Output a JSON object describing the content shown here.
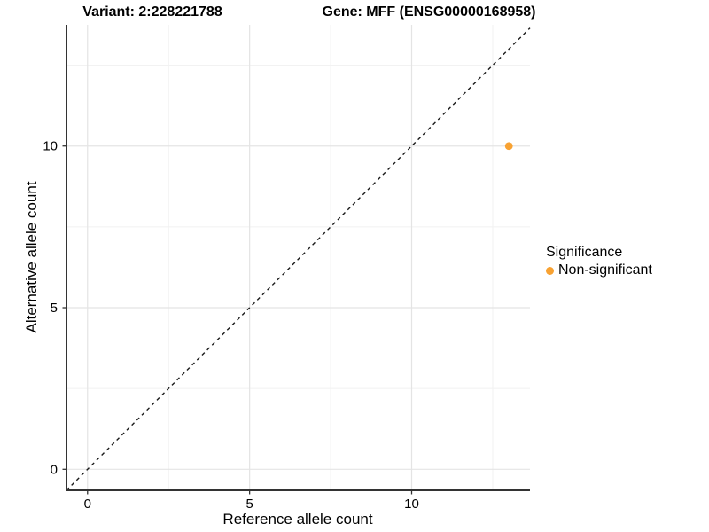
{
  "chart_data": {
    "type": "scatter",
    "title_left": "Variant: 2:228221788",
    "title_right": "Gene: MFF (ENSG00000168958)",
    "xlabel": "Reference allele count",
    "ylabel": "Alternative allele count",
    "xlim": [
      -0.65,
      13.65
    ],
    "ylim": [
      -0.65,
      13.75
    ],
    "x_major_ticks": [
      0,
      5,
      10
    ],
    "y_major_ticks": [
      0,
      5,
      10
    ],
    "x_minor_ticks": [
      2.5,
      7.5,
      12.5
    ],
    "y_minor_ticks": [
      2.5,
      7.5,
      12.5
    ],
    "grid": true,
    "identity_line": {
      "style": "dashed",
      "slope": 1,
      "intercept": 0,
      "color": "#1a1a1a"
    },
    "series": [
      {
        "name": "Non-significant",
        "color": "#F8A232",
        "points": [
          {
            "x": 13,
            "y": 10
          }
        ]
      }
    ],
    "legend": {
      "title": "Significance",
      "position": "right",
      "items": [
        {
          "label": "Non-significant",
          "color": "#F8A232"
        }
      ]
    },
    "colors": {
      "point": "#F8A232",
      "axis_line": "#333333",
      "tick_mark": "#333333",
      "grid_major": "#E4E4E4",
      "grid_minor": "#F1F1F1",
      "background": "#FFFFFF"
    }
  }
}
